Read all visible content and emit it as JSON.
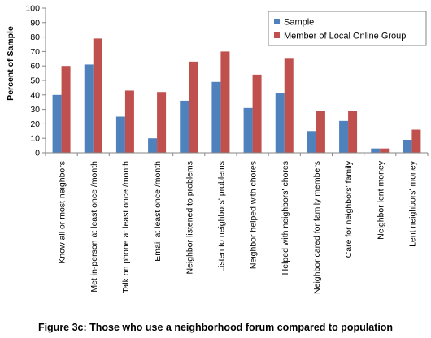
{
  "chart_data": {
    "type": "bar",
    "title": "",
    "xlabel": "",
    "ylabel": "Percent of Sample",
    "ylim": [
      0,
      100
    ],
    "yticks": [
      0,
      10,
      20,
      30,
      40,
      50,
      60,
      70,
      80,
      90,
      100
    ],
    "grid": false,
    "legend_position": "top-right",
    "categories": [
      "Know all or most neighbors",
      "Met in-person at least once /month",
      "Talk on phone at least once /month",
      "Email at least once /month",
      "Neighbor listened to problems",
      "Listen to neighbors' problems",
      "Neighbor helped with chores",
      "Helped with neighbors' chores",
      "Neighbor cared for family members",
      "Care for neighbors' family",
      "Neighbor lent money",
      "Lent neighbors' money"
    ],
    "series": [
      {
        "name": "Sample",
        "color": "#4f81bd",
        "values": [
          40,
          61,
          25,
          10,
          36,
          49,
          31,
          41,
          15,
          22,
          3,
          9
        ]
      },
      {
        "name": "Member of Local Online Group",
        "color": "#c0504d",
        "values": [
          60,
          79,
          43,
          42,
          63,
          70,
          54,
          65,
          29,
          29,
          3,
          16
        ]
      }
    ]
  },
  "caption": "Figure 3c: Those who use a neighborhood forum compared to population"
}
